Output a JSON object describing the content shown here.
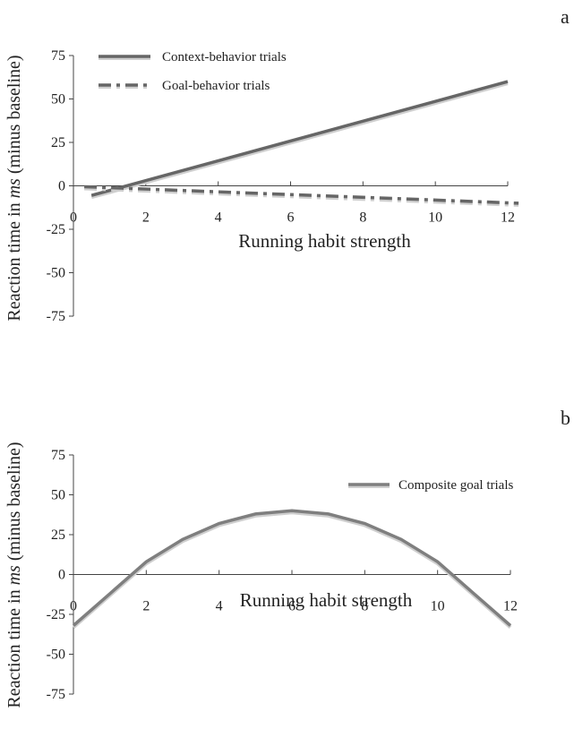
{
  "chart_data": [
    {
      "type": "line",
      "panel": "a",
      "xlabel": "Running habit strength",
      "ylabel_prefix": "Reaction time in ",
      "ylabel_italic": "ms",
      "ylabel_suffix": " (minus baseline)",
      "xlim": [
        0,
        12
      ],
      "ylim": [
        -75,
        75
      ],
      "x_ticks": [
        "0",
        "2",
        "4",
        "6",
        "8",
        "10",
        "12"
      ],
      "y_ticks": [
        "75",
        "50",
        "25",
        "0",
        "-25",
        "-50",
        "-75"
      ],
      "grid": false,
      "legend_position": "top-left",
      "series": [
        {
          "name": "Context-behavior trials",
          "style": "solid",
          "color": "#666666",
          "x": [
            0.5,
            12
          ],
          "y": [
            -5.5,
            60
          ]
        },
        {
          "name": "Goal-behavior trials",
          "style": "dash-dot",
          "color": "#666666",
          "x": [
            0.3,
            12.3
          ],
          "y": [
            -0.5,
            -10
          ]
        }
      ]
    },
    {
      "type": "line",
      "panel": "b",
      "xlabel": "Running habit strength",
      "ylabel_prefix": "Reaction time in ",
      "ylabel_italic": "ms",
      "ylabel_suffix": " (minus baseline)",
      "xlim": [
        0,
        12
      ],
      "ylim": [
        -75,
        75
      ],
      "x_ticks": [
        "0",
        "2",
        "4",
        "6",
        "8",
        "10",
        "12"
      ],
      "y_ticks": [
        "75",
        "50",
        "25",
        "0",
        "-25",
        "-50",
        "-75"
      ],
      "grid": false,
      "legend_position": "top-right",
      "series": [
        {
          "name": "Composite goal trials",
          "style": "solid",
          "color": "#7f7f7f",
          "x": [
            0,
            1,
            2,
            3,
            4,
            5,
            6,
            7,
            8,
            9,
            10,
            11,
            12
          ],
          "y": [
            -32,
            -12,
            8,
            22,
            32,
            38,
            40,
            38,
            32,
            22,
            8,
            -12,
            -32
          ]
        }
      ]
    }
  ]
}
